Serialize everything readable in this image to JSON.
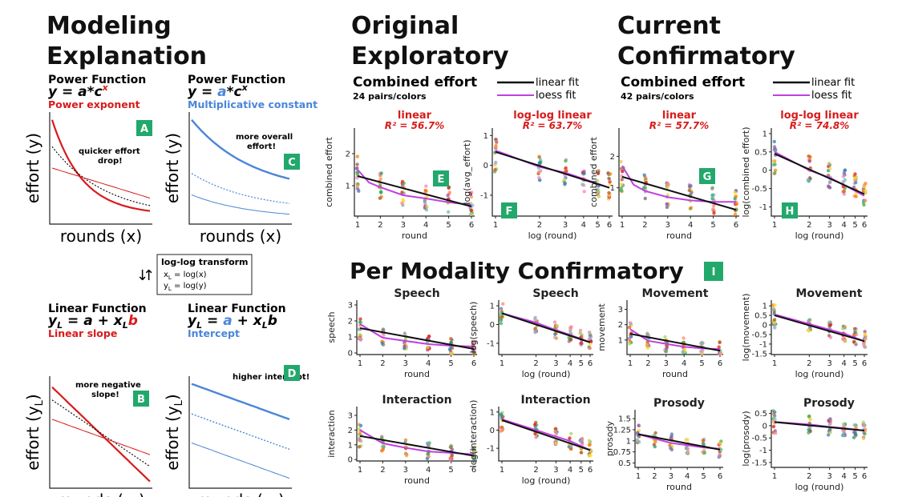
{
  "headings": {
    "modeling": [
      "Modeling",
      "Explanation"
    ],
    "original": [
      "Original",
      "Exploratory"
    ],
    "current": [
      "Current",
      "Confirmatory"
    ],
    "per_modality": "Per Modality Confirmatory"
  },
  "legend": {
    "linear": "linear fit",
    "loess": "loess fit",
    "linear_color": "#111111",
    "loess_color": "#c040e0"
  },
  "group_titles": {
    "orig": {
      "title": "Combined effort",
      "sub": "24 pairs/colors"
    },
    "curr": {
      "title": "Combined effort",
      "sub": "42 pairs/colors"
    }
  },
  "schematics": [
    {
      "id": "A",
      "title": "Power Function",
      "eq_left": "y = a*c",
      "eq_sup": "x",
      "eq_hl": "sup",
      "label": "Power exponent",
      "label_color": "#d81b1b",
      "annotation": "quicker effort drop!",
      "xlabel": "rounds (x)",
      "ylabel": "effort (y)",
      "kind": "power_exp"
    },
    {
      "id": "C",
      "title": "Power Function",
      "eq_left": "y = a*c",
      "eq_sup": "x",
      "eq_hl": "a",
      "label": "Multiplicative constant",
      "label_color": "#4a86d8",
      "annotation": "more overall effort!",
      "xlabel": "rounds (x)",
      "ylabel": "effort (y)",
      "kind": "power_const"
    },
    {
      "id": "B",
      "title": "Linear Function",
      "eq_left": "y",
      "eq_hl": "b",
      "label": "Linear slope",
      "label_color": "#d81b1b",
      "annotation": "more negative slope!",
      "xlabel": "rounds (x",
      "ylabel": "effort (y",
      "kind": "lin_slope"
    },
    {
      "id": "D",
      "title": "Linear Function",
      "eq_left": "y",
      "eq_hl": "a",
      "label": "Intercept",
      "label_color": "#4a86d8",
      "annotation": "higher intercept!",
      "xlabel": "rounds (x",
      "ylabel": "effort (y",
      "kind": "lin_int"
    }
  ],
  "transform": {
    "title": "log-log transform",
    "line1": "x",
    "line1b": " = log(x)",
    "line2": "y",
    "line2b": " = log(y)",
    "sub": "L"
  },
  "badge_I": "I",
  "chart_data": [
    {
      "id": "E",
      "type": "scatter",
      "title": "linear",
      "r2": "R² = 56.7%",
      "xlabel": "round",
      "ylabel": "combined effort",
      "x": [
        1,
        2,
        3,
        4,
        5,
        6
      ],
      "xticks": [
        "1",
        "2",
        "3",
        "4",
        "5",
        "6"
      ],
      "yticks": [
        1,
        2
      ],
      "ylim": [
        0.05,
        2.8
      ],
      "scale": "linear",
      "fit_linear": [
        [
          1,
          1.3
        ],
        [
          6,
          0.35
        ]
      ],
      "fit_loess": [
        [
          1,
          1.5
        ],
        [
          1.5,
          1.1
        ],
        [
          2,
          0.95
        ],
        [
          3,
          0.7
        ],
        [
          4,
          0.6
        ],
        [
          5,
          0.48
        ],
        [
          6,
          0.4
        ]
      ],
      "mean_y": [
        1.35,
        1.0,
        0.8,
        0.65,
        0.55,
        0.45
      ]
    },
    {
      "id": "F",
      "type": "scatter",
      "title": "log-log linear",
      "r2": "R² = 63.7%",
      "xlabel": "log (round)",
      "ylabel": "log(avg_effort)",
      "x": [
        1,
        2,
        3,
        4,
        5,
        6
      ],
      "xticks": [
        "1",
        "2",
        "3",
        "4",
        "5",
        "6"
      ],
      "yticks": [
        -1,
        0,
        1
      ],
      "ylim": [
        -1.7,
        1.25
      ],
      "scale": "log",
      "fit_linear": [
        [
          1,
          0.45
        ],
        [
          6,
          -0.75
        ]
      ],
      "fit_loess": [
        [
          1,
          0.5
        ],
        [
          2,
          -0.05
        ],
        [
          3,
          -0.25
        ],
        [
          4,
          -0.45
        ],
        [
          6,
          -0.75
        ]
      ],
      "mean_y": [
        0.3,
        -0.05,
        -0.25,
        -0.45,
        -0.6,
        -0.7
      ]
    },
    {
      "id": "G",
      "type": "scatter",
      "title": "linear",
      "r2": "R² = 57.7%",
      "xlabel": "round",
      "ylabel": "combined effort",
      "x": [
        1,
        2,
        3,
        4,
        5,
        6
      ],
      "xticks": [
        "1",
        "2",
        "3",
        "4",
        "5",
        "6"
      ],
      "yticks": [
        1,
        2
      ],
      "ylim": [
        0.1,
        2.9
      ],
      "scale": "linear",
      "fit_linear": [
        [
          1,
          1.35
        ],
        [
          6,
          0.3
        ]
      ],
      "fit_loess": [
        [
          1,
          1.7
        ],
        [
          1.5,
          1.1
        ],
        [
          2,
          0.9
        ],
        [
          3,
          0.7
        ],
        [
          4,
          0.6
        ],
        [
          5,
          0.55
        ],
        [
          6,
          0.55
        ]
      ],
      "mean_y": [
        1.3,
        1.0,
        0.8,
        0.7,
        0.6,
        0.5
      ]
    },
    {
      "id": "H",
      "type": "scatter",
      "title": "log-log linear",
      "r2": "R² = 74.8%",
      "xlabel": "log (round)",
      "ylabel": "log(combined effort)",
      "x": [
        1,
        2,
        3,
        4,
        5,
        6
      ],
      "xticks": [
        "1",
        "2",
        "3",
        "4",
        "5",
        "6"
      ],
      "yticks": [
        -1.0,
        -0.5,
        0.0,
        0.5,
        1.0
      ],
      "ylim": [
        -1.25,
        1.15
      ],
      "scale": "log",
      "fit_linear": [
        [
          1,
          0.45
        ],
        [
          6,
          -0.65
        ]
      ],
      "fit_loess": [
        [
          1,
          0.5
        ],
        [
          2,
          0.0
        ],
        [
          3,
          -0.2
        ],
        [
          4,
          -0.4
        ],
        [
          6,
          -0.7
        ]
      ],
      "mean_y": [
        0.4,
        0.05,
        -0.15,
        -0.3,
        -0.45,
        -0.6
      ]
    },
    {
      "id": "speech",
      "type": "scatter",
      "title": "Speech",
      "xlabel": "round",
      "ylabel": "speech",
      "x": [
        1,
        2,
        3,
        4,
        5,
        6
      ],
      "xticks": [
        "1",
        "2",
        "3",
        "4",
        "5",
        "6"
      ],
      "yticks": [
        0,
        1,
        2,
        3
      ],
      "ylim": [
        -0.1,
        3.3
      ],
      "scale": "linear",
      "fit_linear": [
        [
          1,
          1.55
        ],
        [
          6,
          0.25
        ]
      ],
      "fit_loess": [
        [
          1,
          1.8
        ],
        [
          2,
          0.95
        ],
        [
          3,
          0.75
        ],
        [
          4,
          0.55
        ],
        [
          5,
          0.45
        ],
        [
          6,
          0.4
        ]
      ],
      "mean_y": [
        1.5,
        1.0,
        0.75,
        0.55,
        0.45,
        0.35
      ]
    },
    {
      "id": "speech_log",
      "type": "scatter",
      "title": "Speech",
      "xlabel": "log (round)",
      "ylabel": "log(speech)",
      "x": [
        1,
        2,
        3,
        4,
        5,
        6
      ],
      "xticks": [
        "1",
        "2",
        "3",
        "4",
        "5",
        "6"
      ],
      "yticks": [
        -1,
        0,
        1
      ],
      "ylim": [
        -1.6,
        1.3
      ],
      "scale": "log",
      "fit_linear": [
        [
          1,
          0.6
        ],
        [
          6,
          -0.95
        ]
      ],
      "fit_loess": [
        [
          1,
          0.6
        ],
        [
          2,
          0.1
        ],
        [
          3,
          -0.3
        ],
        [
          4,
          -0.55
        ],
        [
          6,
          -0.95
        ]
      ],
      "mean_y": [
        0.5,
        0.0,
        -0.3,
        -0.5,
        -0.7,
        -0.85
      ]
    },
    {
      "id": "movement",
      "type": "scatter",
      "title": "Movement",
      "xlabel": "round",
      "ylabel": "movement",
      "x": [
        1,
        2,
        3,
        4,
        5,
        6
      ],
      "xticks": [
        "1",
        "2",
        "3",
        "4",
        "5",
        "6"
      ],
      "yticks": [
        1,
        2,
        3
      ],
      "ylim": [
        0.05,
        3.6
      ],
      "scale": "linear",
      "fit_linear": [
        [
          1,
          1.4
        ],
        [
          6,
          0.3
        ]
      ],
      "fit_loess": [
        [
          1,
          1.7
        ],
        [
          2,
          0.95
        ],
        [
          3,
          0.75
        ],
        [
          4,
          0.55
        ],
        [
          5,
          0.45
        ],
        [
          6,
          0.4
        ]
      ],
      "mean_y": [
        1.4,
        1.0,
        0.75,
        0.6,
        0.5,
        0.4
      ]
    },
    {
      "id": "movement_log",
      "type": "scatter",
      "title": "Movement",
      "xlabel": "log (round)",
      "ylabel": "log(movement)",
      "x": [
        1,
        2,
        3,
        4,
        5,
        6
      ],
      "xticks": [
        "1",
        "2",
        "3",
        "4",
        "5",
        "6"
      ],
      "yticks": [
        -1.5,
        -1.0,
        -0.5,
        0.0,
        0.5,
        1.0
      ],
      "ylim": [
        -1.55,
        1.3
      ],
      "scale": "log",
      "fit_linear": [
        [
          1,
          0.5
        ],
        [
          6,
          -0.85
        ]
      ],
      "fit_loess": [
        [
          1,
          0.55
        ],
        [
          2,
          0.05
        ],
        [
          3,
          -0.25
        ],
        [
          4,
          -0.45
        ],
        [
          6,
          -0.85
        ]
      ],
      "mean_y": [
        0.45,
        0.0,
        -0.25,
        -0.45,
        -0.6,
        -0.75
      ]
    },
    {
      "id": "interaction",
      "type": "scatter",
      "title": "Interaction",
      "xlabel": "round",
      "ylabel": "interaction",
      "x": [
        1,
        2,
        3,
        4,
        5,
        6
      ],
      "xticks": [
        "1",
        "2",
        "3",
        "4",
        "5",
        "6"
      ],
      "yticks": [
        0,
        1,
        2,
        3
      ],
      "ylim": [
        -0.1,
        3.6
      ],
      "scale": "linear",
      "fit_linear": [
        [
          1,
          1.6
        ],
        [
          6,
          0.25
        ]
      ],
      "fit_loess": [
        [
          1,
          2.0
        ],
        [
          2,
          1.1
        ],
        [
          3,
          0.8
        ],
        [
          4,
          0.55
        ],
        [
          5,
          0.45
        ],
        [
          6,
          0.35
        ]
      ],
      "mean_y": [
        1.6,
        1.1,
        0.8,
        0.6,
        0.45,
        0.35
      ]
    },
    {
      "id": "interaction_log",
      "type": "scatter",
      "title": "Interaction",
      "xlabel": "log (round)",
      "ylabel": "log(interaction)",
      "x": [
        1,
        2,
        3,
        4,
        5,
        6
      ],
      "xticks": [
        "1",
        "2",
        "3",
        "4",
        "5",
        "6"
      ],
      "yticks": [
        -1,
        0,
        1
      ],
      "ylim": [
        -1.7,
        1.3
      ],
      "scale": "log",
      "fit_linear": [
        [
          1,
          0.55
        ],
        [
          6,
          -1.1
        ]
      ],
      "fit_loess": [
        [
          1,
          0.6
        ],
        [
          2,
          0.0
        ],
        [
          3,
          -0.35
        ],
        [
          4,
          -0.6
        ],
        [
          6,
          -1.1
        ]
      ],
      "mean_y": [
        0.5,
        0.0,
        -0.35,
        -0.6,
        -0.8,
        -1.0
      ]
    },
    {
      "id": "prosody",
      "type": "scatter",
      "title": "Prosody",
      "xlabel": "round",
      "ylabel": "prosody",
      "x": [
        1,
        2,
        3,
        4,
        5,
        6
      ],
      "xticks": [
        "1",
        "2",
        "3",
        "4",
        "5",
        "6"
      ],
      "yticks": [
        0.5,
        0.75,
        1.0,
        1.25,
        1.5
      ],
      "ylim": [
        0.4,
        1.7
      ],
      "scale": "linear",
      "fit_linear": [
        [
          1,
          1.15
        ],
        [
          6,
          0.8
        ]
      ],
      "fit_loess": [
        [
          1,
          1.15
        ],
        [
          2,
          1.05
        ],
        [
          3,
          0.95
        ],
        [
          4,
          0.9
        ],
        [
          5,
          0.85
        ],
        [
          6,
          0.82
        ]
      ],
      "mean_y": [
        1.15,
        1.05,
        0.97,
        0.9,
        0.85,
        0.8
      ]
    },
    {
      "id": "prosody_log",
      "type": "scatter",
      "title": "Prosody",
      "xlabel": "log (round)",
      "ylabel": "log(prosody)",
      "x": [
        1,
        2,
        3,
        4,
        5,
        6
      ],
      "xticks": [
        "1",
        "2",
        "3",
        "4",
        "5",
        "6"
      ],
      "yticks": [
        -1.5,
        -1.0,
        -0.5,
        0.0,
        0.5
      ],
      "ylim": [
        -1.7,
        0.65
      ],
      "scale": "log",
      "fit_linear": [
        [
          1,
          0.15
        ],
        [
          6,
          -0.2
        ]
      ],
      "fit_loess": [
        [
          1,
          0.15
        ],
        [
          2,
          0.05
        ],
        [
          3,
          -0.05
        ],
        [
          4,
          -0.1
        ],
        [
          6,
          -0.2
        ]
      ],
      "mean_y": [
        0.15,
        0.05,
        -0.05,
        -0.1,
        -0.15,
        -0.2
      ]
    }
  ]
}
